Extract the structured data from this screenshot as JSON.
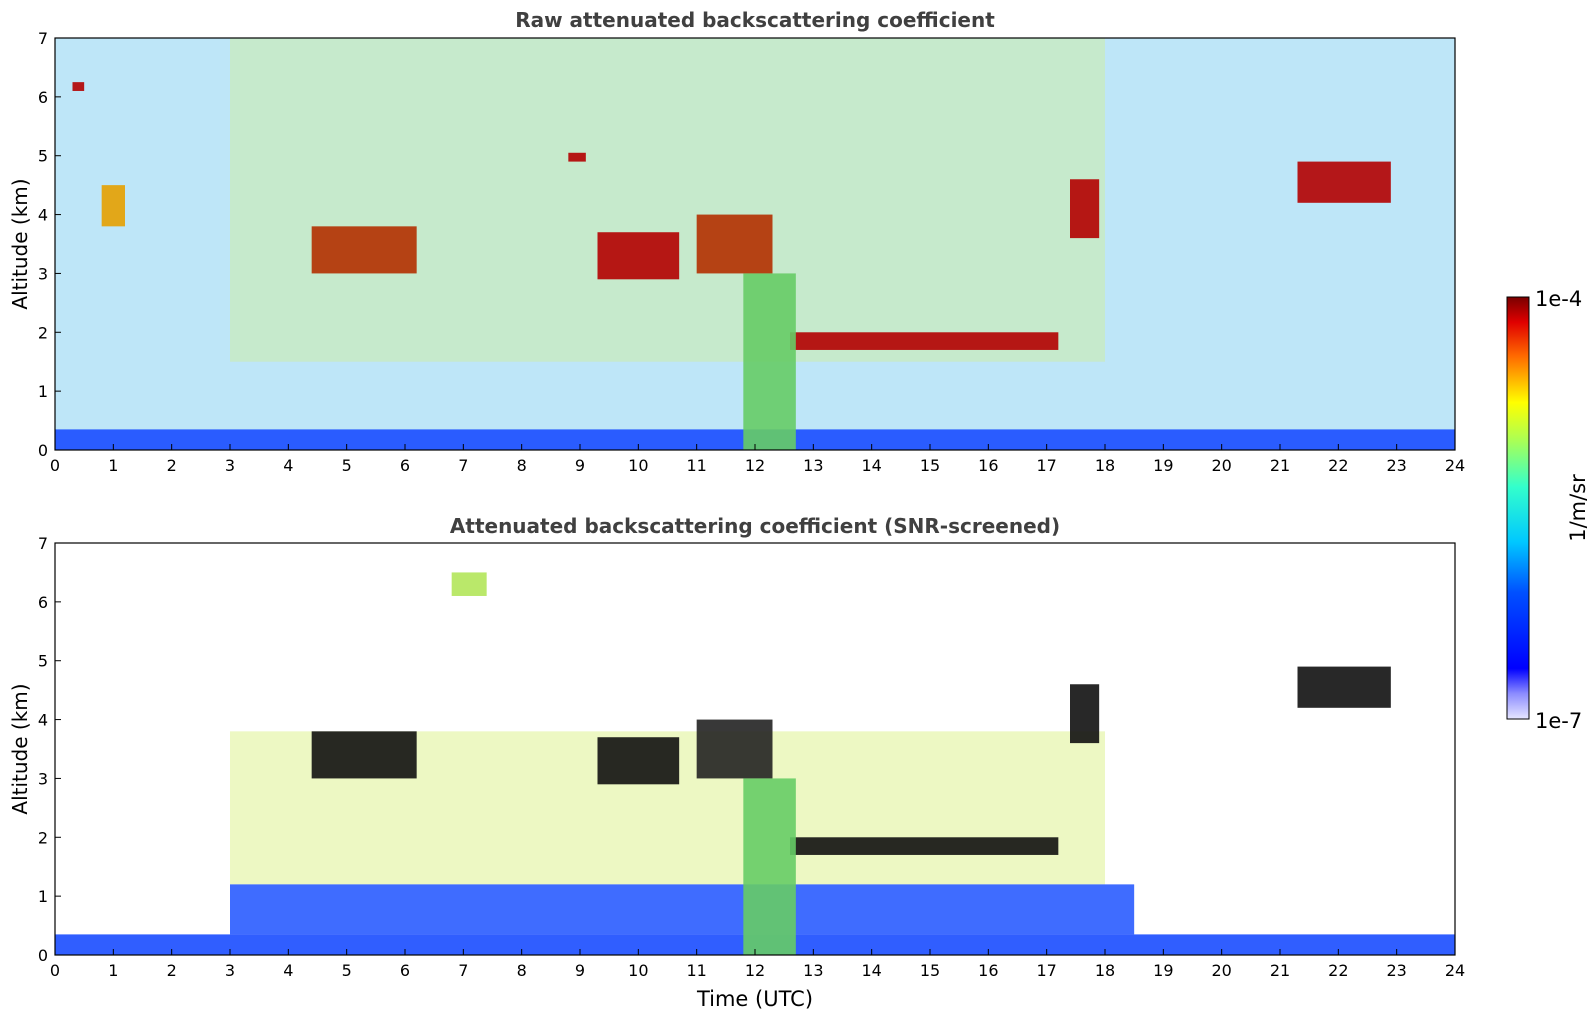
{
  "chart_data": [
    {
      "type": "heatmap",
      "title": "Raw attenuated backscattering coefficient",
      "xlabel": "",
      "ylabel": "Altitude (km)",
      "xlim": [
        0,
        24
      ],
      "ylim": [
        0,
        7
      ],
      "xticks": [
        "0",
        "1",
        "2",
        "3",
        "4",
        "5",
        "6",
        "7",
        "8",
        "9",
        "10",
        "11",
        "12",
        "13",
        "14",
        "15",
        "16",
        "17",
        "18",
        "19",
        "20",
        "21",
        "22",
        "23",
        "24"
      ],
      "yticks": [
        "0",
        "1",
        "2",
        "3",
        "4",
        "5",
        "6",
        "7"
      ],
      "features": [
        {
          "feature": "surface layer",
          "x": [
            0,
            24
          ],
          "y": [
            0,
            0.35
          ],
          "color": "#1a4dff"
        },
        {
          "feature": "cloud layer",
          "x": [
            12.6,
            17.2
          ],
          "y": [
            1.7,
            2.0
          ],
          "color": "#b30000"
        },
        {
          "feature": "cloud layer",
          "x": [
            4.4,
            6.2
          ],
          "y": [
            3.0,
            3.8
          ],
          "color": "#b33000"
        },
        {
          "feature": "cloud layer",
          "x": [
            0.8,
            1.2
          ],
          "y": [
            3.8,
            4.5
          ],
          "color": "#e6a000"
        },
        {
          "feature": "cloud layer",
          "x": [
            9.3,
            10.7
          ],
          "y": [
            2.9,
            3.7
          ],
          "color": "#b30000"
        },
        {
          "feature": "cloud layer",
          "x": [
            11.0,
            12.3
          ],
          "y": [
            3.0,
            4.0
          ],
          "color": "#b33000"
        },
        {
          "feature": "cloud layer",
          "x": [
            21.3,
            22.9
          ],
          "y": [
            4.2,
            4.9
          ],
          "color": "#b30000"
        },
        {
          "feature": "cloud layer",
          "x": [
            17.4,
            17.9
          ],
          "y": [
            3.6,
            4.6
          ],
          "color": "#b30000"
        },
        {
          "feature": "aerosol plume",
          "x": [
            11.8,
            12.7
          ],
          "y": [
            0,
            3.0
          ],
          "color": "#66cc66"
        },
        {
          "feature": "cloud layer",
          "x": [
            0.3,
            0.5
          ],
          "y": [
            6.1,
            6.25
          ],
          "color": "#b30000"
        },
        {
          "feature": "cloud layer",
          "x": [
            8.8,
            9.1
          ],
          "y": [
            4.9,
            5.05
          ],
          "color": "#b30000"
        }
      ]
    },
    {
      "type": "heatmap",
      "title": "Attenuated backscattering coefficient (SNR-screened)",
      "xlabel": "Time (UTC)",
      "ylabel": "Altitude (km)",
      "xlim": [
        0,
        24
      ],
      "ylim": [
        0,
        7
      ],
      "xticks": [
        "0",
        "1",
        "2",
        "3",
        "4",
        "5",
        "6",
        "7",
        "8",
        "9",
        "10",
        "11",
        "12",
        "13",
        "14",
        "15",
        "16",
        "17",
        "18",
        "19",
        "20",
        "21",
        "22",
        "23",
        "24"
      ],
      "yticks": [
        "0",
        "1",
        "2",
        "3",
        "4",
        "5",
        "6",
        "7"
      ],
      "features": [
        {
          "feature": "surface layer",
          "x": [
            0,
            24
          ],
          "y": [
            0,
            0.35
          ],
          "color": "#1a4dff"
        },
        {
          "feature": "boundary layer",
          "x": [
            3,
            18.5
          ],
          "y": [
            0.35,
            1.2
          ],
          "color": "#2a5cff"
        },
        {
          "feature": "cloud layer",
          "x": [
            12.6,
            17.2
          ],
          "y": [
            1.7,
            2.0
          ],
          "color": "#111111"
        },
        {
          "feature": "cloud layer",
          "x": [
            4.4,
            6.2
          ],
          "y": [
            3.0,
            3.8
          ],
          "color": "#111111"
        },
        {
          "feature": "cloud layer",
          "x": [
            9.3,
            10.7
          ],
          "y": [
            2.9,
            3.7
          ],
          "color": "#111111"
        },
        {
          "feature": "cloud layer",
          "x": [
            11.0,
            12.3
          ],
          "y": [
            3.0,
            4.0
          ],
          "color": "#222222"
        },
        {
          "feature": "cloud layer",
          "x": [
            21.3,
            22.9
          ],
          "y": [
            4.2,
            4.9
          ],
          "color": "#111111"
        },
        {
          "feature": "cloud layer",
          "x": [
            17.4,
            17.9
          ],
          "y": [
            3.6,
            4.6
          ],
          "color": "#111111"
        },
        {
          "feature": "aerosol plume",
          "x": [
            11.8,
            12.7
          ],
          "y": [
            0,
            3.0
          ],
          "color": "#66cc66"
        },
        {
          "feature": "cloud layer",
          "x": [
            6.8,
            7.4
          ],
          "y": [
            6.1,
            6.5
          ],
          "color": "#b3e65a"
        }
      ]
    }
  ],
  "colorbar": {
    "label": "1/m/sr",
    "max_label": "1e-4",
    "min_label": "1e-7",
    "scale": "log",
    "colormap": "jet"
  }
}
